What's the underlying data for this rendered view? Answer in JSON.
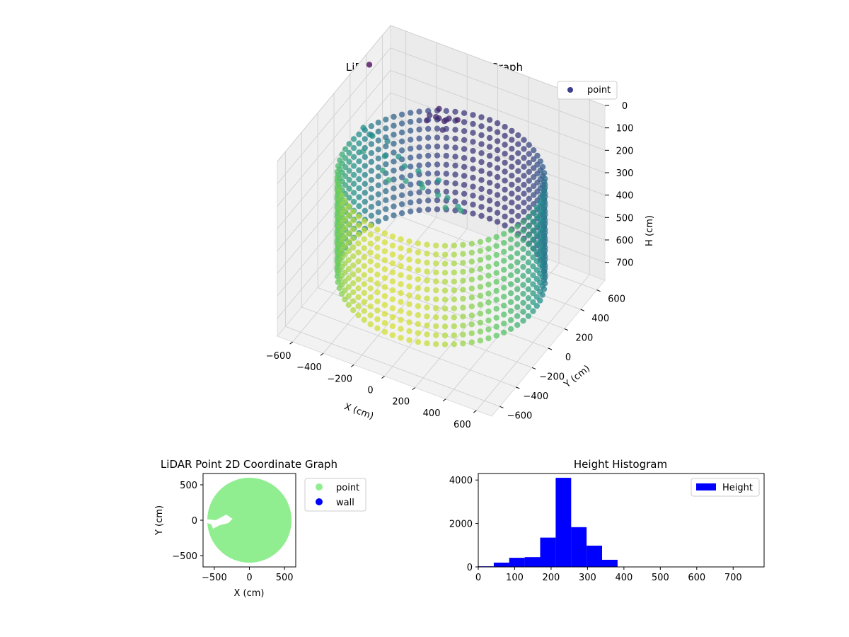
{
  "figure": {
    "background": "#ffffff"
  },
  "chart_data": [
    {
      "type": "scatter3d",
      "title": "LiDAR Point 3D Coordinate Graph",
      "xlabel": "X (cm)",
      "ylabel": "Y (cm)",
      "zlabel": "H (cm)",
      "xlim": [
        -700,
        700
      ],
      "ylim": [
        -700,
        700
      ],
      "zlim": [
        0,
        780
      ],
      "z_inverted": true,
      "xticks": [
        -600,
        -400,
        -200,
        0,
        200,
        400,
        600
      ],
      "yticks": [
        -600,
        -400,
        -200,
        0,
        200,
        400,
        600
      ],
      "zticks": [
        0,
        100,
        200,
        300,
        400,
        500,
        600,
        700
      ],
      "legend": {
        "labels": [
          "point"
        ],
        "placement": "top-right",
        "marker_color": "#3b3f8c"
      },
      "colormap": "viridis",
      "colormap_stops": [
        "#440154",
        "#3b528b",
        "#21918c",
        "#5ec962",
        "#fde725"
      ],
      "rings": {
        "radius": 600,
        "angle_step_deg": 5,
        "heights": [
          200,
          240,
          280,
          320,
          360,
          400,
          440,
          480,
          520,
          560,
          600,
          640
        ]
      },
      "series": [
        {
          "label": "point",
          "points": [
            [
              -550,
              80,
              150
            ],
            [
              -520,
              100,
              180
            ],
            [
              -480,
              60,
              160
            ],
            [
              -500,
              -20,
              200
            ],
            [
              -430,
              150,
              210
            ],
            [
              -400,
              60,
              230
            ],
            [
              -360,
              -40,
              240
            ],
            [
              -320,
              80,
              220
            ],
            [
              -300,
              -80,
              250
            ],
            [
              -260,
              40,
              230
            ],
            [
              -220,
              -20,
              260
            ],
            [
              -180,
              60,
              240
            ],
            [
              -140,
              20,
              270
            ],
            [
              -100,
              -40,
              250
            ],
            [
              -60,
              80,
              260
            ],
            [
              -20,
              0,
              280
            ],
            [
              20,
              40,
              300
            ],
            [
              60,
              -60,
              290
            ],
            [
              100,
              20,
              310
            ],
            [
              140,
              -20,
              300
            ],
            [
              -200,
              200,
              80
            ],
            [
              -150,
              220,
              60
            ],
            [
              -170,
              180,
              40
            ],
            [
              -120,
              200,
              50
            ],
            [
              -140,
              240,
              30
            ],
            [
              -100,
              230,
              70
            ],
            [
              -90,
              190,
              90
            ],
            [
              -60,
              210,
              40
            ],
            [
              -30,
              260,
              60
            ],
            [
              -680,
              400,
              40
            ]
          ]
        }
      ]
    },
    {
      "type": "scatter",
      "title": "LiDAR Point 2D Coordinate Graph",
      "xlabel": "X (cm)",
      "ylabel": "Y (cm)",
      "xlim": [
        -660,
        660
      ],
      "ylim": [
        -660,
        660
      ],
      "xticks": [
        -500,
        0,
        500
      ],
      "yticks": [
        -500,
        0,
        500
      ],
      "series": [
        {
          "name": "point",
          "color": "#90ee90",
          "shape": "disk",
          "radius": 600
        },
        {
          "name": "wall",
          "color": "#0000ff",
          "points": []
        }
      ],
      "gap_path": [
        [
          -660,
          20
        ],
        [
          -480,
          0
        ],
        [
          -330,
          80
        ],
        [
          -240,
          20
        ],
        [
          -300,
          -40
        ],
        [
          -420,
          -70
        ],
        [
          -520,
          -120
        ],
        [
          -540,
          -60
        ],
        [
          -660,
          -20
        ]
      ],
      "legend": {
        "labels": [
          "point",
          "wall"
        ],
        "placement": "outside-right"
      }
    },
    {
      "type": "bar",
      "title": "Height Histogram",
      "xlabel": "",
      "ylabel": "",
      "bin_edges": [
        0,
        42.5,
        85,
        127.5,
        170,
        212.5,
        255,
        297.5,
        340,
        382.5
      ],
      "values": [
        30,
        200,
        420,
        450,
        1350,
        4100,
        1830,
        980,
        330
      ],
      "xlim": [
        0,
        785
      ],
      "ylim": [
        0,
        4300
      ],
      "xticks": [
        0,
        100,
        200,
        300,
        400,
        500,
        600,
        700
      ],
      "yticks": [
        0,
        2000,
        4000
      ],
      "color": "#0000ff",
      "legend": {
        "labels": [
          "Height"
        ],
        "placement": "top-right"
      }
    }
  ]
}
